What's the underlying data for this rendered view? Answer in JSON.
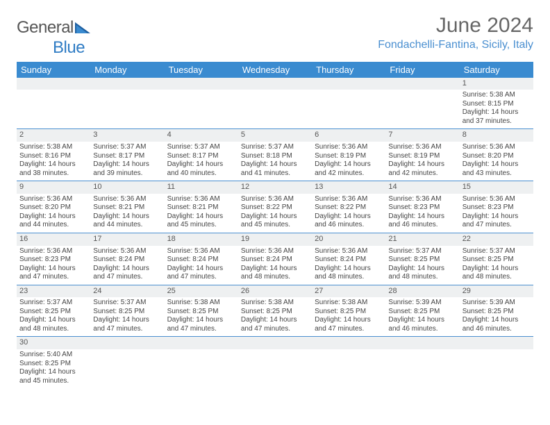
{
  "logo": {
    "name": "General",
    "accent": "Blue"
  },
  "title": "June 2024",
  "location": "Fondachelli-Fantina, Sicily, Italy",
  "colors": {
    "header_bg": "#3a8bd0",
    "header_text": "#ffffff",
    "daynum_bg": "#eef0f1",
    "cell_border": "#4a8fd0",
    "location_color": "#4a8fd0",
    "title_color": "#666666",
    "logo_gray": "#555555",
    "logo_blue": "#2f7cc4"
  },
  "day_headers": [
    "Sunday",
    "Monday",
    "Tuesday",
    "Wednesday",
    "Thursday",
    "Friday",
    "Saturday"
  ],
  "weeks": [
    {
      "nums": [
        "",
        "",
        "",
        "",
        "",
        "",
        "1"
      ],
      "cells": [
        null,
        null,
        null,
        null,
        null,
        null,
        {
          "sunrise": "5:38 AM",
          "sunset": "8:15 PM",
          "daylight": "14 hours and 37 minutes."
        }
      ]
    },
    {
      "nums": [
        "2",
        "3",
        "4",
        "5",
        "6",
        "7",
        "8"
      ],
      "cells": [
        {
          "sunrise": "5:38 AM",
          "sunset": "8:16 PM",
          "daylight": "14 hours and 38 minutes."
        },
        {
          "sunrise": "5:37 AM",
          "sunset": "8:17 PM",
          "daylight": "14 hours and 39 minutes."
        },
        {
          "sunrise": "5:37 AM",
          "sunset": "8:17 PM",
          "daylight": "14 hours and 40 minutes."
        },
        {
          "sunrise": "5:37 AM",
          "sunset": "8:18 PM",
          "daylight": "14 hours and 41 minutes."
        },
        {
          "sunrise": "5:36 AM",
          "sunset": "8:19 PM",
          "daylight": "14 hours and 42 minutes."
        },
        {
          "sunrise": "5:36 AM",
          "sunset": "8:19 PM",
          "daylight": "14 hours and 42 minutes."
        },
        {
          "sunrise": "5:36 AM",
          "sunset": "8:20 PM",
          "daylight": "14 hours and 43 minutes."
        }
      ]
    },
    {
      "nums": [
        "9",
        "10",
        "11",
        "12",
        "13",
        "14",
        "15"
      ],
      "cells": [
        {
          "sunrise": "5:36 AM",
          "sunset": "8:20 PM",
          "daylight": "14 hours and 44 minutes."
        },
        {
          "sunrise": "5:36 AM",
          "sunset": "8:21 PM",
          "daylight": "14 hours and 44 minutes."
        },
        {
          "sunrise": "5:36 AM",
          "sunset": "8:21 PM",
          "daylight": "14 hours and 45 minutes."
        },
        {
          "sunrise": "5:36 AM",
          "sunset": "8:22 PM",
          "daylight": "14 hours and 45 minutes."
        },
        {
          "sunrise": "5:36 AM",
          "sunset": "8:22 PM",
          "daylight": "14 hours and 46 minutes."
        },
        {
          "sunrise": "5:36 AM",
          "sunset": "8:23 PM",
          "daylight": "14 hours and 46 minutes."
        },
        {
          "sunrise": "5:36 AM",
          "sunset": "8:23 PM",
          "daylight": "14 hours and 47 minutes."
        }
      ]
    },
    {
      "nums": [
        "16",
        "17",
        "18",
        "19",
        "20",
        "21",
        "22"
      ],
      "cells": [
        {
          "sunrise": "5:36 AM",
          "sunset": "8:23 PM",
          "daylight": "14 hours and 47 minutes."
        },
        {
          "sunrise": "5:36 AM",
          "sunset": "8:24 PM",
          "daylight": "14 hours and 47 minutes."
        },
        {
          "sunrise": "5:36 AM",
          "sunset": "8:24 PM",
          "daylight": "14 hours and 47 minutes."
        },
        {
          "sunrise": "5:36 AM",
          "sunset": "8:24 PM",
          "daylight": "14 hours and 48 minutes."
        },
        {
          "sunrise": "5:36 AM",
          "sunset": "8:24 PM",
          "daylight": "14 hours and 48 minutes."
        },
        {
          "sunrise": "5:37 AM",
          "sunset": "8:25 PM",
          "daylight": "14 hours and 48 minutes."
        },
        {
          "sunrise": "5:37 AM",
          "sunset": "8:25 PM",
          "daylight": "14 hours and 48 minutes."
        }
      ]
    },
    {
      "nums": [
        "23",
        "24",
        "25",
        "26",
        "27",
        "28",
        "29"
      ],
      "cells": [
        {
          "sunrise": "5:37 AM",
          "sunset": "8:25 PM",
          "daylight": "14 hours and 48 minutes."
        },
        {
          "sunrise": "5:37 AM",
          "sunset": "8:25 PM",
          "daylight": "14 hours and 47 minutes."
        },
        {
          "sunrise": "5:38 AM",
          "sunset": "8:25 PM",
          "daylight": "14 hours and 47 minutes."
        },
        {
          "sunrise": "5:38 AM",
          "sunset": "8:25 PM",
          "daylight": "14 hours and 47 minutes."
        },
        {
          "sunrise": "5:38 AM",
          "sunset": "8:25 PM",
          "daylight": "14 hours and 47 minutes."
        },
        {
          "sunrise": "5:39 AM",
          "sunset": "8:25 PM",
          "daylight": "14 hours and 46 minutes."
        },
        {
          "sunrise": "5:39 AM",
          "sunset": "8:25 PM",
          "daylight": "14 hours and 46 minutes."
        }
      ]
    },
    {
      "nums": [
        "30",
        "",
        "",
        "",
        "",
        "",
        ""
      ],
      "cells": [
        {
          "sunrise": "5:40 AM",
          "sunset": "8:25 PM",
          "daylight": "14 hours and 45 minutes."
        },
        null,
        null,
        null,
        null,
        null,
        null
      ]
    }
  ],
  "labels": {
    "sunrise": "Sunrise:",
    "sunset": "Sunset:",
    "daylight": "Daylight:"
  }
}
